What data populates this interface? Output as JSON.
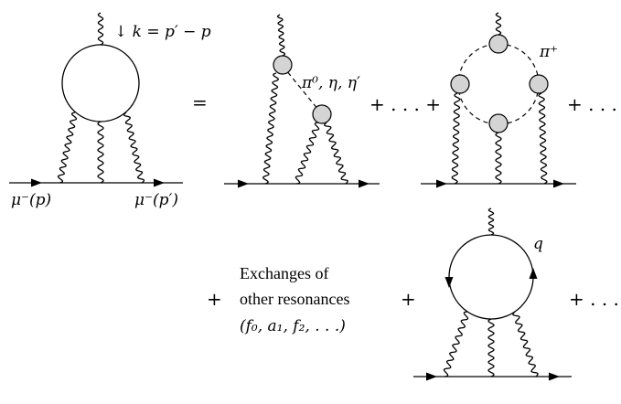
{
  "diagram": {
    "photon_momentum": "↓ k = p′ − p",
    "muon_in": "μ⁻(p)",
    "muon_out": "μ⁻(p′)",
    "equals": "=",
    "pseudoscalars": "π⁰, η, η′",
    "plus_dots_plus": "+ . . . +",
    "pion_label": "π⁺",
    "plus_dots_1": "+ . . .",
    "plus_1": "+",
    "exchanges_line1": "Exchanges of",
    "exchanges_line2": "other resonances",
    "exchanges_line3": "(f₀, a₁, f₂, . . .)",
    "plus_2": "+",
    "quark_label": "q",
    "plus_dots_2": "+ . . ."
  }
}
